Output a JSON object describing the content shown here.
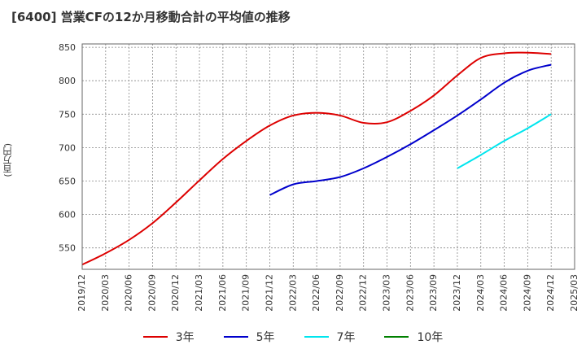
{
  "title": "[6400]  営業CFの12か月移動合計の平均値の推移",
  "y_unit_label": "(百万円)",
  "chart_data": {
    "type": "line",
    "title": "[6400]  営業CFの12か月移動合計の平均値の推移",
    "ylabel": "(百万円)",
    "xlabel": "",
    "ylim": [
      518,
      855
    ],
    "yticks": [
      550,
      600,
      650,
      700,
      750,
      800,
      850
    ],
    "xticks": [
      "2019/12",
      "2020/03",
      "2020/06",
      "2020/09",
      "2020/12",
      "2021/03",
      "2021/06",
      "2021/09",
      "2021/12",
      "2022/03",
      "2022/06",
      "2022/09",
      "2022/12",
      "2023/03",
      "2023/06",
      "2023/09",
      "2023/12",
      "2024/03",
      "2024/06",
      "2024/09",
      "2024/12",
      "2025/03"
    ],
    "grid": true,
    "legend_position": "bottom",
    "series": [
      {
        "name": "3年",
        "color": "#dd0000",
        "points": [
          [
            "2019/12",
            525
          ],
          [
            "2020/03",
            542
          ],
          [
            "2020/06",
            562
          ],
          [
            "2020/09",
            587
          ],
          [
            "2020/12",
            618
          ],
          [
            "2021/03",
            651
          ],
          [
            "2021/06",
            683
          ],
          [
            "2021/09",
            710
          ],
          [
            "2021/12",
            733
          ],
          [
            "2022/03",
            748
          ],
          [
            "2022/06",
            752
          ],
          [
            "2022/09",
            748
          ],
          [
            "2022/12",
            737
          ],
          [
            "2023/03",
            738
          ],
          [
            "2023/06",
            755
          ],
          [
            "2023/09",
            778
          ],
          [
            "2023/12",
            808
          ],
          [
            "2024/03",
            834
          ],
          [
            "2024/06",
            841
          ],
          [
            "2024/09",
            842
          ],
          [
            "2024/12",
            840
          ]
        ]
      },
      {
        "name": "5年",
        "color": "#0000cc",
        "points": [
          [
            "2021/12",
            629
          ],
          [
            "2022/03",
            645
          ],
          [
            "2022/06",
            650
          ],
          [
            "2022/09",
            656
          ],
          [
            "2022/12",
            669
          ],
          [
            "2023/03",
            686
          ],
          [
            "2023/06",
            705
          ],
          [
            "2023/09",
            726
          ],
          [
            "2023/12",
            748
          ],
          [
            "2024/03",
            772
          ],
          [
            "2024/06",
            797
          ],
          [
            "2024/09",
            815
          ],
          [
            "2024/12",
            824
          ]
        ]
      },
      {
        "name": "7年",
        "color": "#00e5ee",
        "points": [
          [
            "2023/12",
            669
          ],
          [
            "2024/03",
            689
          ],
          [
            "2024/06",
            710
          ],
          [
            "2024/09",
            729
          ],
          [
            "2024/12",
            750
          ]
        ]
      },
      {
        "name": "10年",
        "color": "#008000",
        "points": []
      }
    ]
  }
}
